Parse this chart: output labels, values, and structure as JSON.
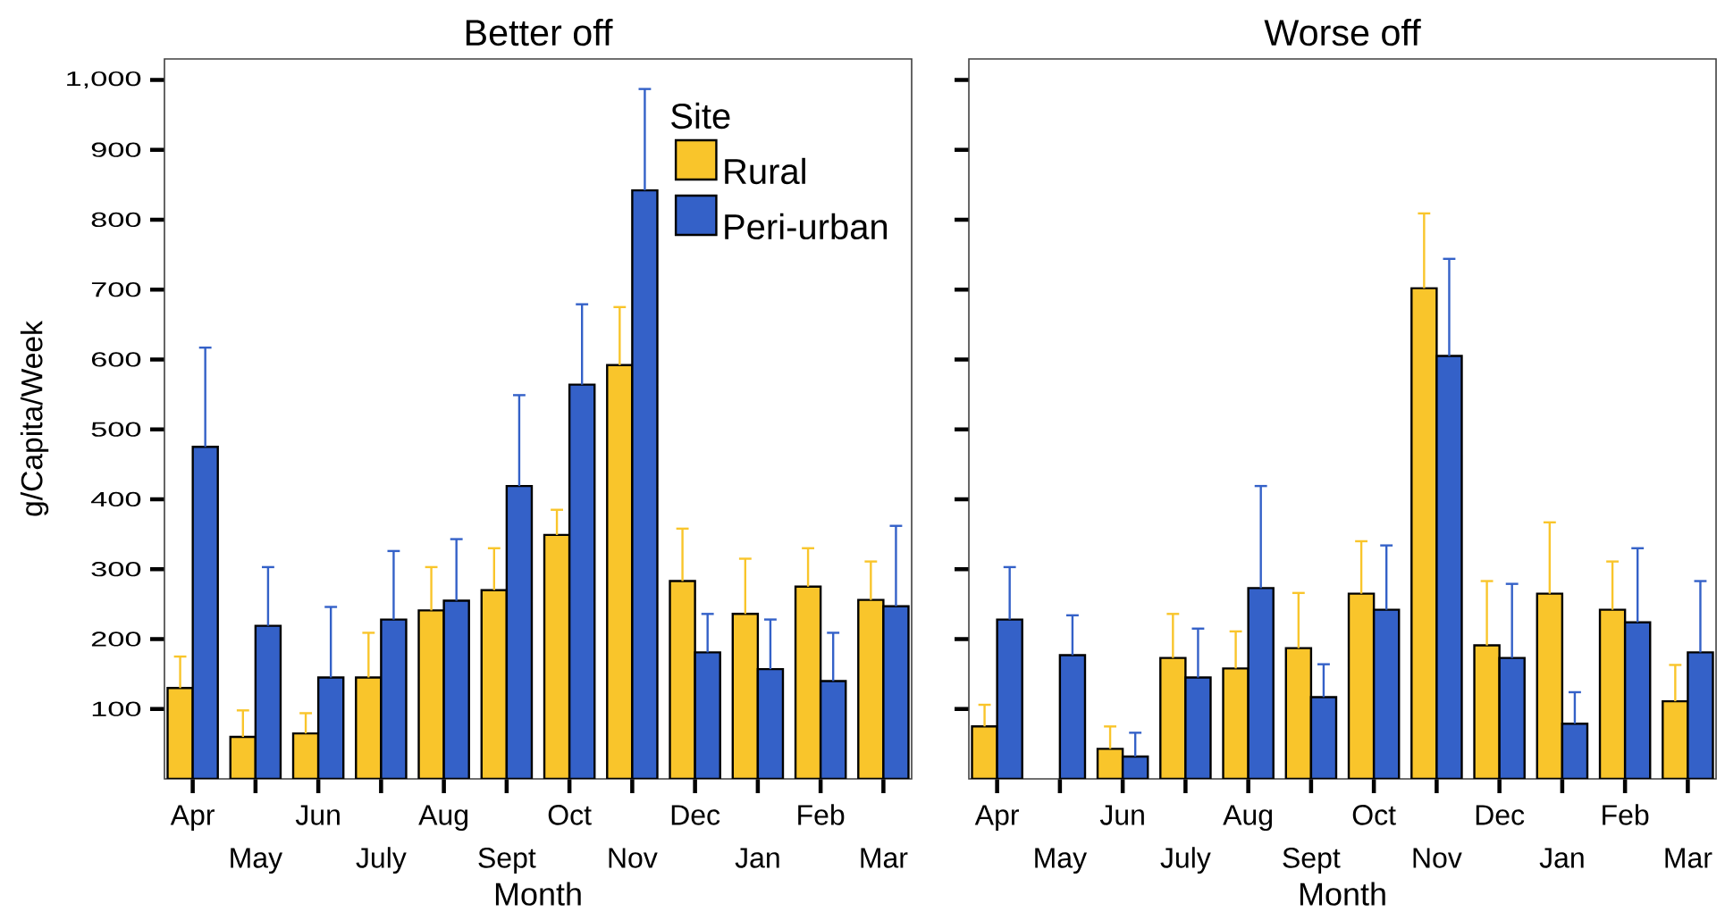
{
  "chart_data": [
    {
      "type": "bar",
      "title": "Better off",
      "xlabel": "Month",
      "ylabel": "g/Capita/Week",
      "legend_title": "Site",
      "legend": "top right",
      "categories": [
        "Apr",
        "May",
        "Jun",
        "July",
        "Aug",
        "Sept",
        "Oct",
        "Nov",
        "Dec",
        "Jan",
        "Feb",
        "Mar"
      ],
      "series": [
        {
          "name": "Rural",
          "color": "#f9c52b",
          "values": [
            130,
            60,
            65,
            145,
            241,
            270,
            349,
            592,
            283,
            236,
            275,
            256
          ],
          "errors": [
            [
              130,
              175
            ],
            [
              60,
              98
            ],
            [
              65,
              94
            ],
            [
              145,
              209
            ],
            [
              241,
              303
            ],
            [
              270,
              330
            ],
            [
              349,
              385
            ],
            [
              592,
              675
            ],
            [
              283,
              358
            ],
            [
              236,
              315
            ],
            [
              275,
              330
            ],
            [
              256,
              311
            ]
          ]
        },
        {
          "name": "Peri-urban",
          "color": "#3461c8",
          "values": [
            475,
            219,
            145,
            228,
            255,
            419,
            564,
            842,
            181,
            157,
            140,
            247
          ],
          "errors": [
            [
              475,
              617
            ],
            [
              219,
              303
            ],
            [
              145,
              246
            ],
            [
              228,
              326
            ],
            [
              255,
              343
            ],
            [
              419,
              549
            ],
            [
              564,
              679
            ],
            [
              842,
              987
            ],
            [
              181,
              236
            ],
            [
              157,
              228
            ],
            [
              140,
              209
            ],
            [
              247,
              362
            ]
          ]
        }
      ],
      "ylim": [
        0,
        1030
      ],
      "yticks": [
        100,
        200,
        300,
        400,
        500,
        600,
        700,
        800,
        900,
        {
          "value": 1000,
          "label": "1,000"
        }
      ]
    },
    {
      "type": "bar",
      "title": "Worse off",
      "xlabel": "Month",
      "legend": false,
      "tick_labels": "x",
      "categories": [
        "Apr",
        "May",
        "Jun",
        "July",
        "Aug",
        "Sept",
        "Oct",
        "Nov",
        "Dec",
        "Jan",
        "Feb",
        "Mar"
      ],
      "series": [
        {
          "color": "#f9c52b",
          "values": [
            75,
            null,
            43,
            173,
            158,
            187,
            265,
            702,
            191,
            265,
            242,
            111
          ],
          "errors": [
            [
              75,
              106
            ],
            null,
            [
              43,
              75
            ],
            [
              173,
              236
            ],
            [
              158,
              211
            ],
            [
              187,
              266
            ],
            [
              265,
              340
            ],
            [
              702,
              809
            ],
            [
              191,
              283
            ],
            [
              265,
              367
            ],
            [
              242,
              311
            ],
            [
              111,
              163
            ]
          ]
        },
        {
          "color": "#3461c8",
          "values": [
            228,
            177,
            32,
            145,
            273,
            117,
            242,
            605,
            173,
            79,
            224,
            181
          ],
          "errors": [
            [
              228,
              303
            ],
            [
              177,
              234
            ],
            [
              32,
              66
            ],
            [
              145,
              215
            ],
            [
              273,
              419
            ],
            [
              117,
              164
            ],
            [
              242,
              334
            ],
            [
              605,
              744
            ],
            [
              173,
              279
            ],
            [
              79,
              124
            ],
            [
              224,
              330
            ],
            [
              181,
              283
            ]
          ]
        }
      ],
      "ylim": [
        0,
        1030
      ],
      "yticks": [
        100,
        200,
        300,
        400,
        500,
        600,
        700,
        800,
        900,
        1000
      ]
    }
  ]
}
